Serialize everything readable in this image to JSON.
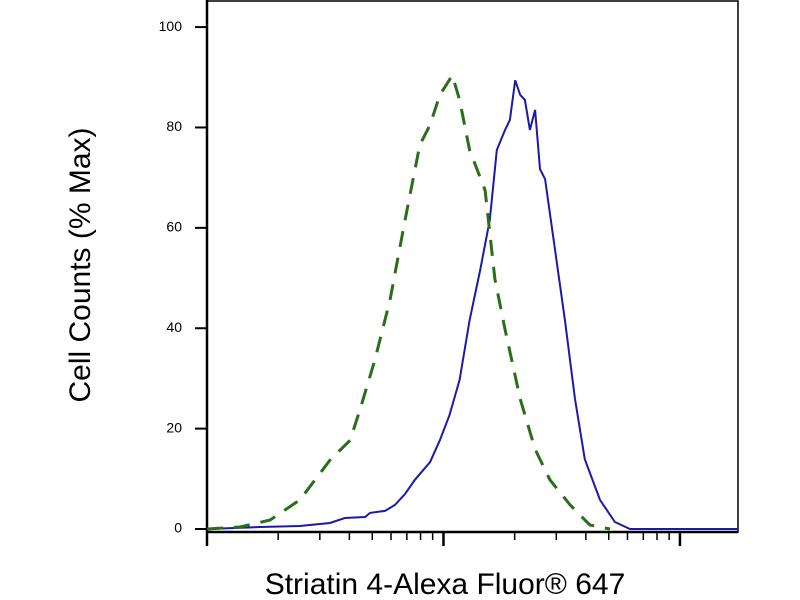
{
  "chart_data": {
    "type": "line",
    "x_label": "Striatin 4-Alexa Fluor® 647",
    "y_label": "Cell Counts (% Max)",
    "xscale": "log",
    "xlim": [
      1,
      176
    ],
    "xticks": [
      1,
      2,
      3,
      4,
      5,
      6,
      7,
      8,
      9,
      10,
      20,
      30,
      40,
      50,
      60,
      70,
      80,
      90,
      100
    ],
    "ylim": [
      0,
      105
    ],
    "yticks": [
      0,
      20,
      40,
      60,
      80,
      100
    ],
    "series": [
      {
        "color": "#1a1aa6",
        "dash": false,
        "x": [
          1,
          1.68,
          2.47,
          3.31,
          3.83,
          4.66,
          4.89,
          5.66,
          6.24,
          6.88,
          7.57,
          8.77,
          9.66,
          10.6,
          11.7,
          12.9,
          14.3,
          15.7,
          16.8,
          18.2,
          19.1,
          20.1,
          21.1,
          22.1,
          23.2,
          24.4,
          25.6,
          26.9,
          29.6,
          32.6,
          36.0,
          39.6,
          45.9,
          53.1,
          61.5,
          176
        ],
        "values": [
          0,
          0.4,
          0.6,
          1.2,
          2.2,
          2.4,
          3.2,
          3.6,
          4.8,
          7.0,
          9.8,
          13.3,
          17.7,
          22.7,
          29.7,
          41.6,
          51.6,
          61.6,
          75.5,
          79.5,
          81.5,
          89.4,
          86.5,
          85.5,
          79.5,
          83.5,
          71.7,
          69.7,
          55.8,
          41.8,
          25.9,
          13.9,
          5.8,
          1.4,
          0,
          0
        ]
      },
      {
        "color": "#2a6e1a",
        "dash": true,
        "x": [
          1,
          1.38,
          1.85,
          2.47,
          3.31,
          4.03,
          4.43,
          5.13,
          5.94,
          6.88,
          7.94,
          8.77,
          9.66,
          10.9,
          11.7,
          12.9,
          15.0,
          16.5,
          18.2,
          21.1,
          24.4,
          28.2,
          34.3,
          41.6,
          50.6
        ],
        "values": [
          0,
          0.4,
          1.8,
          5.8,
          13.7,
          17.7,
          23.7,
          33.7,
          45.6,
          61.6,
          76.5,
          80.5,
          86.5,
          90.4,
          85.5,
          75.5,
          67.5,
          49.8,
          39.8,
          25.9,
          15.9,
          9.8,
          4.8,
          0.8,
          0
        ]
      }
    ]
  }
}
